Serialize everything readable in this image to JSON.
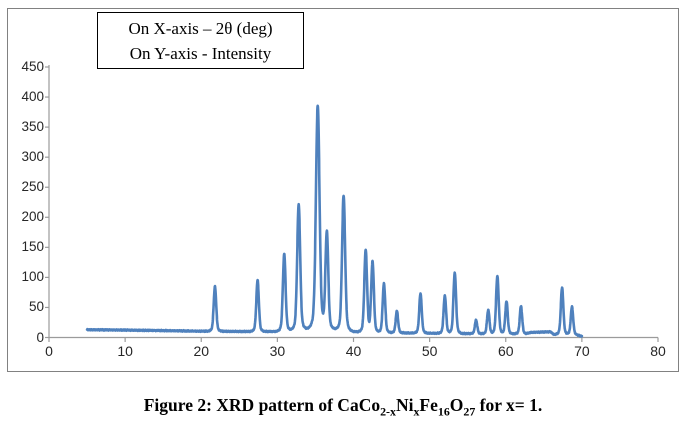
{
  "figure": {
    "legend_box": {
      "lines": [
        "On X-axis – 2θ (deg)",
        "On Y-axis - Intensity"
      ]
    },
    "caption": "Figure 2: XRD pattern of CaCo_{2-x}Ni_{x}Fe_{16}O_{27} for x= 1."
  },
  "chart_data": {
    "type": "line",
    "title": "",
    "xlabel": "2θ (deg)",
    "ylabel": "Intensity",
    "xlim": [
      0,
      80
    ],
    "ylim": [
      0,
      450
    ],
    "x_ticks": [
      0,
      10,
      20,
      30,
      40,
      50,
      60,
      70,
      80
    ],
    "y_ticks": [
      0,
      50,
      100,
      150,
      200,
      250,
      300,
      350,
      400,
      450
    ],
    "grid": false,
    "legend_position": "top-left-box",
    "line_color": "#4F81BD",
    "axis_color": "#9b9b9b",
    "x_start": 5.0,
    "x_end": 70.0,
    "baseline_points": [
      [
        5.0,
        13
      ],
      [
        9,
        12.5
      ],
      [
        15,
        11.5
      ],
      [
        20,
        10.5
      ],
      [
        26,
        10
      ],
      [
        30,
        10
      ],
      [
        32,
        12
      ],
      [
        34,
        14
      ],
      [
        36.2,
        16
      ],
      [
        38,
        13
      ],
      [
        39.8,
        10
      ],
      [
        41,
        9
      ],
      [
        44.5,
        8
      ],
      [
        47.5,
        7.5
      ],
      [
        51,
        7
      ],
      [
        55,
        6.5
      ],
      [
        58,
        6
      ],
      [
        62.6,
        6
      ],
      [
        63.3,
        8.5
      ],
      [
        65.9,
        9.5
      ],
      [
        66.3,
        5
      ],
      [
        68.2,
        5
      ],
      [
        69.2,
        4.5
      ],
      [
        69.7,
        3
      ],
      [
        70,
        2
      ]
    ],
    "peaks": [
      {
        "two_theta": 21.8,
        "intensity": 85
      },
      {
        "two_theta": 27.4,
        "intensity": 95
      },
      {
        "two_theta": 30.9,
        "intensity": 139
      },
      {
        "two_theta": 32.8,
        "intensity": 221
      },
      {
        "two_theta": 35.3,
        "intensity": 386
      },
      {
        "two_theta": 36.5,
        "intensity": 176
      },
      {
        "two_theta": 38.7,
        "intensity": 236
      },
      {
        "two_theta": 41.6,
        "intensity": 145
      },
      {
        "two_theta": 42.5,
        "intensity": 126
      },
      {
        "two_theta": 44.0,
        "intensity": 90
      },
      {
        "two_theta": 45.7,
        "intensity": 44
      },
      {
        "two_theta": 48.8,
        "intensity": 73
      },
      {
        "two_theta": 52.0,
        "intensity": 70
      },
      {
        "two_theta": 53.3,
        "intensity": 108
      },
      {
        "two_theta": 56.1,
        "intensity": 29
      },
      {
        "two_theta": 57.7,
        "intensity": 46
      },
      {
        "two_theta": 58.9,
        "intensity": 102
      },
      {
        "two_theta": 60.1,
        "intensity": 60
      },
      {
        "two_theta": 62.0,
        "intensity": 52
      },
      {
        "two_theta": 67.4,
        "intensity": 83
      },
      {
        "two_theta": 68.7,
        "intensity": 51
      }
    ]
  }
}
